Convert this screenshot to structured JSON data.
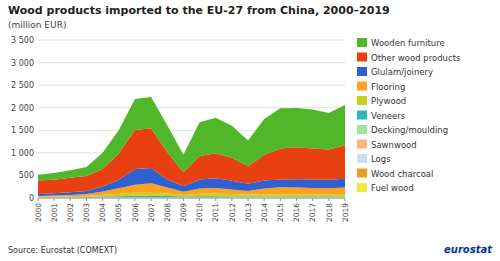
{
  "chart_data": {
    "type": "area",
    "stacked": true,
    "title": "Wood products imported to the EU-27 from China, 2000–2019",
    "subtitle": "(million EUR)",
    "annotations": [
      "Source: Eurostat (COMEXT)",
      "eurostat"
    ],
    "x": [
      2000,
      2001,
      2002,
      2003,
      2004,
      2005,
      2006,
      2007,
      2008,
      2009,
      2010,
      2011,
      2012,
      2013,
      2014,
      2015,
      2016,
      2017,
      2018,
      2019
    ],
    "xlim": [
      2000,
      2019
    ],
    "xticks": [
      2000,
      2001,
      2002,
      2003,
      2004,
      2005,
      2006,
      2007,
      2008,
      2009,
      2010,
      2011,
      2012,
      2013,
      2014,
      2015,
      2016,
      2017,
      2018,
      2019
    ],
    "ylim": [
      0,
      3500
    ],
    "yticks": [
      0,
      500,
      {
        "value": 1000,
        "label": "1 000"
      },
      {
        "value": 1500,
        "label": "1 500"
      },
      {
        "value": 2000,
        "label": "2 000"
      },
      {
        "value": 2500,
        "label": "2 500"
      },
      {
        "value": 3000,
        "label": "3 000"
      },
      {
        "value": 3500,
        "label": "3 500"
      }
    ],
    "grid": true,
    "legend": "right",
    "series": [
      {
        "name": "Fuel wood",
        "color": "#f5e642",
        "values": [
          3,
          3,
          3,
          3,
          3,
          3,
          3,
          3,
          3,
          3,
          3,
          3,
          3,
          3,
          3,
          3,
          3,
          3,
          3,
          3
        ]
      },
      {
        "name": "Wood charcoal",
        "color": "#e8a020",
        "values": [
          3,
          3,
          3,
          3,
          3,
          3,
          3,
          3,
          3,
          3,
          3,
          3,
          3,
          3,
          3,
          3,
          3,
          3,
          3,
          3
        ]
      },
      {
        "name": "Logs",
        "color": "#c8dff0",
        "values": [
          3,
          3,
          3,
          3,
          3,
          3,
          3,
          3,
          3,
          3,
          3,
          3,
          3,
          3,
          3,
          3,
          3,
          3,
          3,
          3
        ]
      },
      {
        "name": "Sawnwood",
        "color": "#f5b87a",
        "values": [
          3,
          3,
          3,
          3,
          3,
          3,
          3,
          3,
          3,
          3,
          3,
          3,
          3,
          3,
          3,
          3,
          3,
          3,
          3,
          3
        ]
      },
      {
        "name": "Decking/moulding",
        "color": "#98e898",
        "values": [
          3,
          3,
          3,
          3,
          3,
          3,
          3,
          3,
          3,
          3,
          3,
          3,
          3,
          3,
          3,
          3,
          3,
          3,
          3,
          3
        ]
      },
      {
        "name": "Veneers",
        "color": "#28b8b8",
        "values": [
          8,
          8,
          8,
          12,
          18,
          25,
          35,
          35,
          30,
          18,
          25,
          25,
          20,
          18,
          18,
          18,
          18,
          18,
          18,
          18
        ]
      },
      {
        "name": "Plywood",
        "color": "#c8d020",
        "values": [
          8,
          12,
          18,
          25,
          35,
          55,
          65,
          65,
          55,
          35,
          55,
          60,
          55,
          45,
          50,
          50,
          50,
          50,
          50,
          55
        ]
      },
      {
        "name": "Flooring",
        "color": "#ffa020",
        "values": [
          15,
          20,
          25,
          35,
          75,
          120,
          180,
          210,
          130,
          70,
          115,
          120,
          100,
          75,
          125,
          155,
          150,
          140,
          135,
          145
        ]
      },
      {
        "name": "Glulam/joinery",
        "color": "#3060d0",
        "values": [
          40,
          50,
          60,
          70,
          110,
          190,
          350,
          340,
          180,
          130,
          200,
          220,
          190,
          160,
          180,
          170,
          180,
          185,
          185,
          195
        ]
      },
      {
        "name": "Other wood products",
        "color": "#e84010",
        "values": [
          300,
          300,
          320,
          330,
          390,
          580,
          860,
          880,
          610,
          300,
          520,
          550,
          510,
          390,
          570,
          690,
          710,
          690,
          670,
          740
        ]
      },
      {
        "name": "Wooden furniture",
        "color": "#50b828",
        "values": [
          130,
          150,
          170,
          200,
          360,
          520,
          690,
          690,
          590,
          390,
          750,
          790,
          710,
          570,
          790,
          890,
          870,
          860,
          810,
          890
        ]
      }
    ]
  }
}
